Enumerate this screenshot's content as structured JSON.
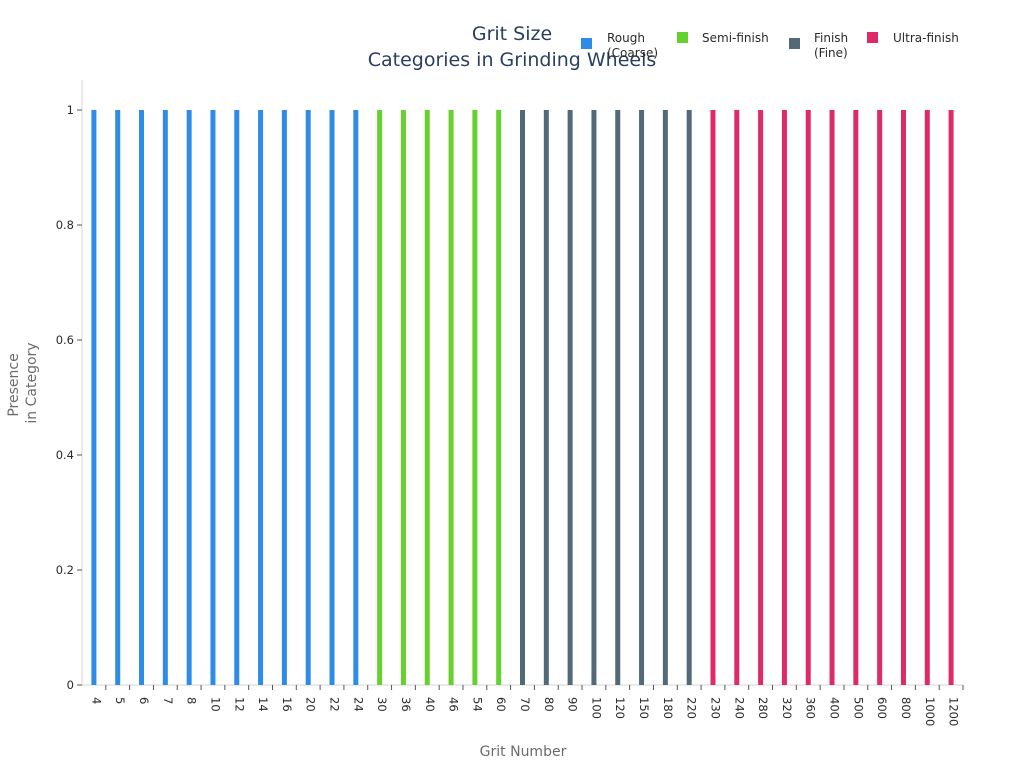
{
  "chart_data": {
    "type": "bar",
    "title_lines": [
      "Grit Size",
      "Categories in Grinding Wheels"
    ],
    "xlabel": "Grit Number",
    "ylabel_lines": [
      "Presence",
      "in Category"
    ],
    "ylim": [
      0,
      1
    ],
    "yticks": [
      "0",
      "0.2",
      "0.4",
      "0.6",
      "0.8",
      "1"
    ],
    "categories": [
      "4",
      "5",
      "6",
      "7",
      "8",
      "10",
      "12",
      "14",
      "16",
      "20",
      "22",
      "24",
      "30",
      "36",
      "40",
      "46",
      "54",
      "60",
      "70",
      "80",
      "90",
      "100",
      "120",
      "150",
      "180",
      "220",
      "230",
      "240",
      "280",
      "320",
      "360",
      "400",
      "500",
      "600",
      "800",
      "1000",
      "1200"
    ],
    "series": [
      {
        "name": "Rough (Coarse)",
        "label_lines": [
          "Rough",
          "(Coarse)"
        ],
        "color": "#2e8be8",
        "values": [
          1,
          1,
          1,
          1,
          1,
          1,
          1,
          1,
          1,
          1,
          1,
          1,
          0,
          0,
          0,
          0,
          0,
          0,
          0,
          0,
          0,
          0,
          0,
          0,
          0,
          0,
          0,
          0,
          0,
          0,
          0,
          0,
          0,
          0,
          0,
          0,
          0
        ]
      },
      {
        "name": "Semi-finish",
        "label_lines": [
          "Semi-finish"
        ],
        "color": "#66d12e",
        "values": [
          0,
          0,
          0,
          0,
          0,
          0,
          0,
          0,
          0,
          0,
          0,
          0,
          1,
          1,
          1,
          1,
          1,
          1,
          0,
          0,
          0,
          0,
          0,
          0,
          0,
          0,
          0,
          0,
          0,
          0,
          0,
          0,
          0,
          0,
          0,
          0,
          0
        ]
      },
      {
        "name": "Finish (Fine)",
        "label_lines": [
          "Finish",
          "(Fine)"
        ],
        "color": "#526a78",
        "values": [
          0,
          0,
          0,
          0,
          0,
          0,
          0,
          0,
          0,
          0,
          0,
          0,
          0,
          0,
          0,
          0,
          0,
          0,
          1,
          1,
          1,
          1,
          1,
          1,
          1,
          1,
          0,
          0,
          0,
          0,
          0,
          0,
          0,
          0,
          0,
          0,
          0
        ]
      },
      {
        "name": "Ultra-finish",
        "label_lines": [
          "Ultra-finish"
        ],
        "color": "#df2a68",
        "values": [
          0,
          0,
          0,
          0,
          0,
          0,
          0,
          0,
          0,
          0,
          0,
          0,
          0,
          0,
          0,
          0,
          0,
          0,
          0,
          0,
          0,
          0,
          0,
          0,
          0,
          0,
          1,
          1,
          1,
          1,
          1,
          1,
          1,
          1,
          1,
          1,
          1
        ]
      }
    ],
    "legend_position": "top-right",
    "grid": false
  }
}
